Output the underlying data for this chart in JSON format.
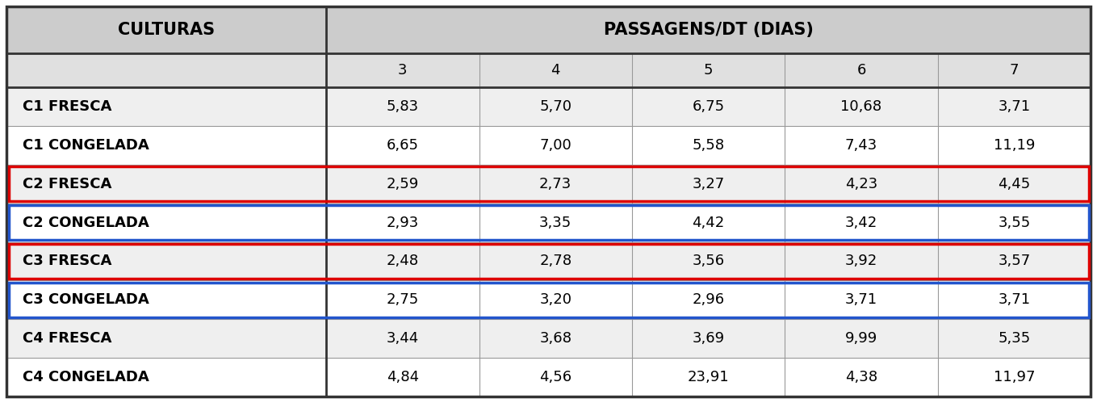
{
  "title_col": "CULTURAS",
  "title_data": "PASSAGENS/DT (DIAS)",
  "col_headers": [
    "3",
    "4",
    "5",
    "6",
    "7"
  ],
  "rows": [
    {
      "label": "C1 FRESCA",
      "values": [
        "5,83",
        "5,70",
        "6,75",
        "10,68",
        "3,71"
      ],
      "border": null
    },
    {
      "label": "C1 CONGELADA",
      "values": [
        "6,65",
        "7,00",
        "5,58",
        "7,43",
        "11,19"
      ],
      "border": null
    },
    {
      "label": "C2 FRESCA",
      "values": [
        "2,59",
        "2,73",
        "3,27",
        "4,23",
        "4,45"
      ],
      "border": "red"
    },
    {
      "label": "C2 CONGELADA",
      "values": [
        "2,93",
        "3,35",
        "4,42",
        "3,42",
        "3,55"
      ],
      "border": "blue"
    },
    {
      "label": "C3 FRESCA",
      "values": [
        "2,48",
        "2,78",
        "3,56",
        "3,92",
        "3,57"
      ],
      "border": "red"
    },
    {
      "label": "C3 CONGELADA",
      "values": [
        "2,75",
        "3,20",
        "2,96",
        "3,71",
        "3,71"
      ],
      "border": "blue"
    },
    {
      "label": "C4 FRESCA",
      "values": [
        "3,44",
        "3,68",
        "3,69",
        "9,99",
        "5,35"
      ],
      "border": null
    },
    {
      "label": "C4 CONGELADA",
      "values": [
        "4,84",
        "4,56",
        "23,91",
        "4,38",
        "11,97"
      ],
      "border": null
    }
  ],
  "header_bg": "#cccccc",
  "subheader_bg": "#e0e0e0",
  "row_bg_odd": "#efefef",
  "row_bg_even": "#ffffff",
  "border_color": "#333333",
  "light_line_color": "#999999",
  "red_border": "#dd0000",
  "blue_border": "#2255cc",
  "background_color": "#ffffff",
  "fig_width": 13.59,
  "fig_height": 4.99,
  "dpi": 100
}
